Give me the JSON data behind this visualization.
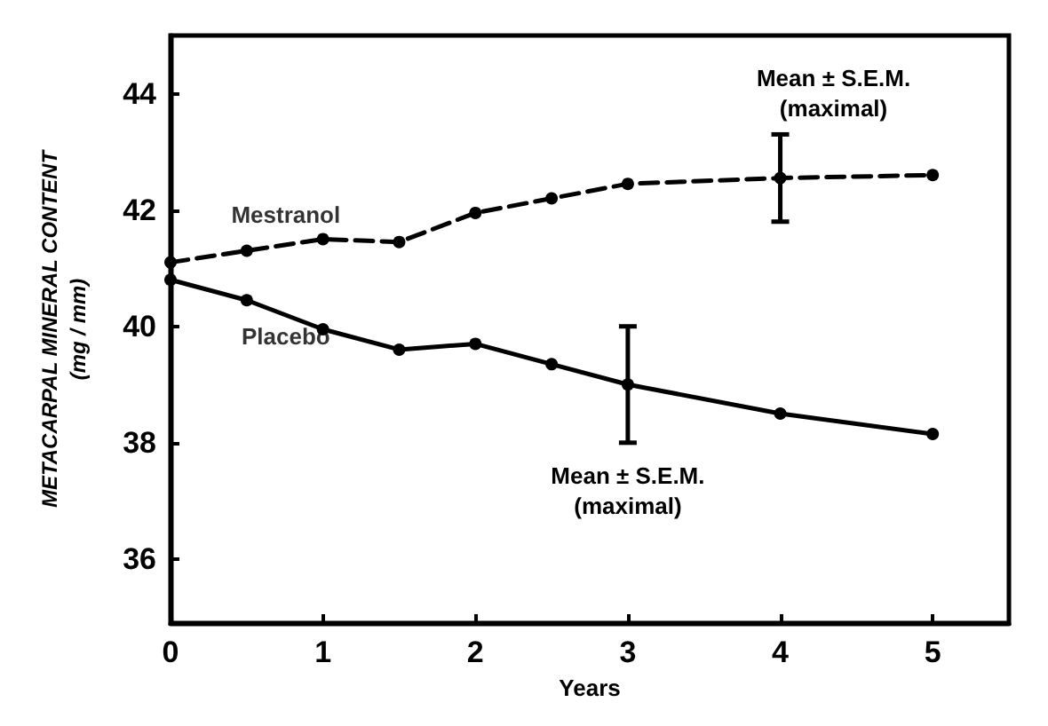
{
  "chart_data": {
    "type": "line",
    "xlabel": "Years",
    "ylabel": "METACARPAL MINERAL CONTENT\n(mg / mm)",
    "xlim": [
      0,
      5.5
    ],
    "ylim": [
      34.9,
      45
    ],
    "xticks": [
      0,
      1,
      2,
      3,
      4,
      5
    ],
    "yticks": [
      36,
      38,
      40,
      42,
      44
    ],
    "grid": false,
    "legend": false,
    "marker": "circle",
    "series": [
      {
        "name": "Mestranol",
        "color": "#000000",
        "line_style": "dashed",
        "x": [
          0,
          0.5,
          1,
          1.5,
          2,
          2.5,
          3,
          4,
          5
        ],
        "values": [
          41.1,
          41.3,
          41.5,
          41.45,
          41.95,
          42.2,
          42.45,
          42.55,
          42.6
        ],
        "errors": [
          null,
          null,
          null,
          null,
          null,
          null,
          null,
          [
            41.8,
            43.3
          ],
          null
        ]
      },
      {
        "name": "Placebo",
        "color": "#000000",
        "line_style": "solid",
        "x": [
          0,
          0.5,
          1,
          1.5,
          2,
          2.5,
          3,
          4,
          5
        ],
        "values": [
          40.8,
          40.45,
          39.95,
          39.6,
          39.7,
          39.35,
          39.0,
          38.5,
          38.15
        ],
        "errors": [
          null,
          null,
          null,
          null,
          null,
          null,
          [
            38.0,
            40.0
          ],
          null,
          null
        ]
      }
    ],
    "annotations": [
      {
        "text": "Mean ± S.E.M.\n(maximal)",
        "x": 4,
        "y": 43.3
      },
      {
        "text": "Mean ± S.E.M.\n(maximal)",
        "x": 3,
        "y": 38.0
      }
    ]
  }
}
